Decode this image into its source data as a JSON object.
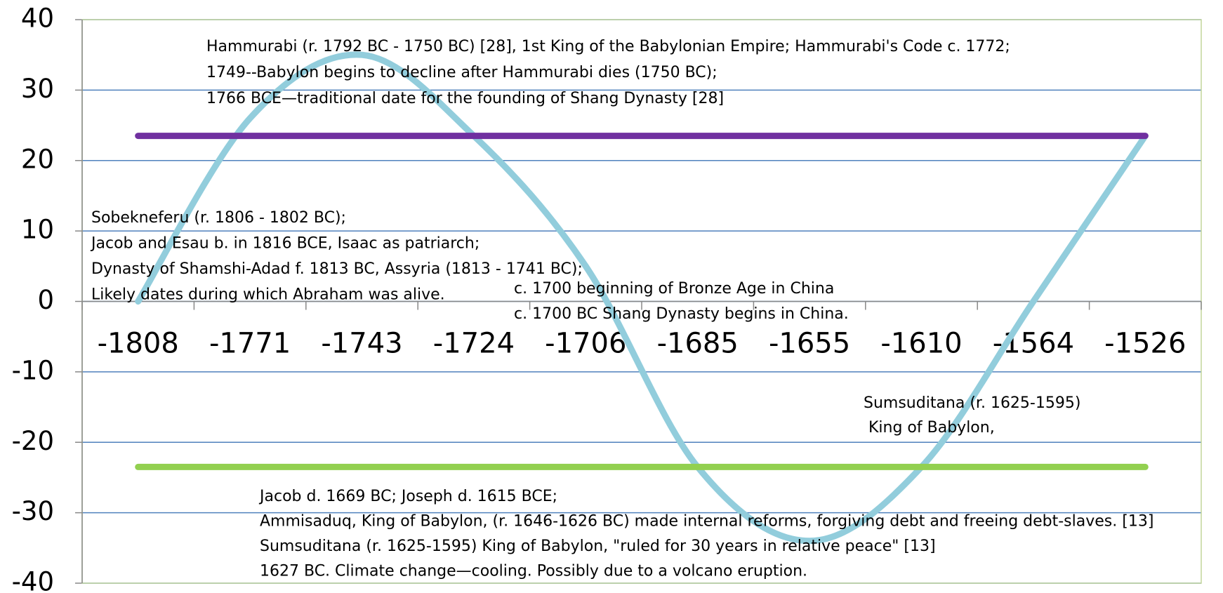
{
  "chart_data": {
    "type": "line",
    "categories": [
      "-1808",
      "-1771",
      "-1743",
      "-1724",
      "-1706",
      "-1685",
      "-1655",
      "-1610",
      "-1564",
      "-1526"
    ],
    "series": [
      {
        "color": "#92cddc",
        "values": [
          0,
          26,
          35,
          23.5,
          5,
          -23.5,
          -34,
          -23.5,
          0,
          23.5
        ],
        "smooth": true
      },
      {
        "color": "#7030a0",
        "values": [
          23.5,
          23.5,
          23.5,
          23.5,
          23.5,
          23.5,
          23.5,
          23.5,
          23.5,
          23.5
        ]
      },
      {
        "color": "#92d050",
        "values": [
          -23.5,
          -23.5,
          -23.5,
          -23.5,
          -23.5,
          -23.5,
          -23.5,
          -23.5,
          -23.5,
          -23.5
        ]
      }
    ],
    "ylim": [
      -40,
      40
    ],
    "yticks": [
      -40,
      -30,
      -20,
      -10,
      0,
      10,
      20,
      30,
      40
    ],
    "grid": true,
    "annotations": [
      {
        "lines": [
          "Hammurabi (r. 1792 BC - 1750 BC) [28], 1st King of the Babylonian Empire; Hammurabi's Code c. 1772;",
          "1749--Babylon begins to decline after Hammurabi dies (1750 BC);",
          "1766 BCE—traditional date for the founding of Shang Dynasty [28]"
        ]
      },
      {
        "lines": [
          "Sobekneferu (r. 1806 - 1802 BC);",
          "Jacob and Esau b. in 1816 BCE, Isaac as patriarch;",
          "Dynasty of Shamshi-Adad f. 1813 BC, Assyria (1813 - 1741 BC);",
          "Likely dates during which Abraham was alive."
        ]
      },
      {
        "lines": [
          "c. 1700 beginning of Bronze Age in China",
          "c. 1700 BC Shang Dynasty begins in China."
        ]
      },
      {
        "lines": [
          "Sumsuditana (r. 1625-1595)",
          " King of Babylon,"
        ]
      },
      {
        "lines": [
          "Jacob d. 1669 BC; Joseph d. 1615 BCE;",
          "Ammisaduq, King of Babylon, (r. 1646-1626 BC) made internal reforms, forgiving debt and freeing debt-slaves. [13]",
          "Sumsuditana (r. 1625-1595) King of Babylon, \"ruled for 30 years in relative peace\" [13]",
          "1627 BC. Climate change—cooling. Possibly due to a volcano eruption."
        ]
      }
    ]
  }
}
